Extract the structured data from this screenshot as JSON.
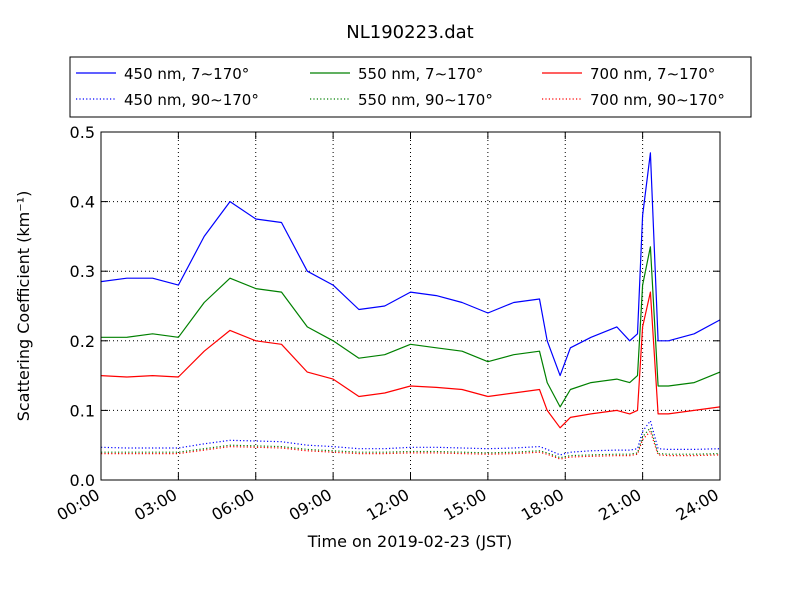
{
  "chart_data": {
    "type": "line",
    "title": "NL190223.dat",
    "xlabel": "Time on 2019-02-23 (JST)",
    "ylabel": "Scattering Coefficient (km⁻¹)",
    "xlim": [
      0,
      24
    ],
    "ylim": [
      0,
      0.5
    ],
    "xtick_values": [
      0,
      3,
      6,
      9,
      12,
      15,
      18,
      21,
      24
    ],
    "xtick_labels": [
      "00:00",
      "03:00",
      "06:00",
      "09:00",
      "12:00",
      "15:00",
      "18:00",
      "21:00",
      "24:00"
    ],
    "ytick_values": [
      0.0,
      0.1,
      0.2,
      0.3,
      0.4,
      0.5
    ],
    "ytick_labels": [
      "0.0",
      "0.1",
      "0.2",
      "0.3",
      "0.4",
      "0.5"
    ],
    "grid": true,
    "legend_position": "top, above plot",
    "x": [
      0,
      1,
      2,
      3,
      4,
      5,
      6,
      7,
      8,
      9,
      10,
      11,
      12,
      13,
      14,
      15,
      16,
      17,
      17.3,
      17.8,
      18.2,
      19,
      20,
      20.5,
      20.8,
      21.0,
      21.3,
      21.6,
      22,
      23,
      24
    ],
    "series": [
      {
        "name": "450 nm, 7∼170°",
        "style": "solid",
        "color": "#0000ff",
        "values": [
          0.285,
          0.29,
          0.29,
          0.28,
          0.35,
          0.4,
          0.375,
          0.37,
          0.3,
          0.28,
          0.245,
          0.25,
          0.27,
          0.265,
          0.255,
          0.24,
          0.255,
          0.26,
          0.2,
          0.15,
          0.19,
          0.205,
          0.22,
          0.2,
          0.21,
          0.38,
          0.47,
          0.2,
          0.2,
          0.21,
          0.23
        ]
      },
      {
        "name": "450 nm, 90∼170°",
        "style": "dotted",
        "color": "#0000ff",
        "values": [
          0.047,
          0.046,
          0.046,
          0.046,
          0.052,
          0.057,
          0.056,
          0.055,
          0.05,
          0.048,
          0.045,
          0.045,
          0.047,
          0.047,
          0.046,
          0.045,
          0.046,
          0.048,
          0.044,
          0.036,
          0.04,
          0.042,
          0.043,
          0.043,
          0.045,
          0.07,
          0.085,
          0.045,
          0.044,
          0.044,
          0.045
        ]
      },
      {
        "name": "550 nm, 7∼170°",
        "style": "solid",
        "color": "#008000",
        "values": [
          0.205,
          0.205,
          0.21,
          0.205,
          0.255,
          0.29,
          0.275,
          0.27,
          0.22,
          0.2,
          0.175,
          0.18,
          0.195,
          0.19,
          0.185,
          0.17,
          0.18,
          0.185,
          0.14,
          0.105,
          0.13,
          0.14,
          0.145,
          0.14,
          0.15,
          0.28,
          0.335,
          0.135,
          0.135,
          0.14,
          0.155
        ]
      },
      {
        "name": "550 nm, 90∼170°",
        "style": "dotted",
        "color": "#008000",
        "values": [
          0.04,
          0.04,
          0.04,
          0.04,
          0.045,
          0.05,
          0.049,
          0.048,
          0.044,
          0.042,
          0.04,
          0.04,
          0.041,
          0.041,
          0.04,
          0.039,
          0.04,
          0.042,
          0.039,
          0.032,
          0.035,
          0.036,
          0.037,
          0.037,
          0.039,
          0.062,
          0.075,
          0.038,
          0.037,
          0.037,
          0.038
        ]
      },
      {
        "name": "700 nm, 7∼170°",
        "style": "solid",
        "color": "#ff0000",
        "values": [
          0.15,
          0.148,
          0.15,
          0.148,
          0.185,
          0.215,
          0.2,
          0.195,
          0.155,
          0.145,
          0.12,
          0.125,
          0.135,
          0.133,
          0.13,
          0.12,
          0.125,
          0.13,
          0.1,
          0.075,
          0.09,
          0.095,
          0.1,
          0.095,
          0.1,
          0.22,
          0.27,
          0.095,
          0.095,
          0.1,
          0.105
        ]
      },
      {
        "name": "700 nm, 90∼170°",
        "style": "dotted",
        "color": "#ff0000",
        "values": [
          0.038,
          0.038,
          0.038,
          0.038,
          0.043,
          0.048,
          0.047,
          0.046,
          0.042,
          0.04,
          0.038,
          0.038,
          0.039,
          0.039,
          0.038,
          0.037,
          0.038,
          0.04,
          0.037,
          0.03,
          0.033,
          0.034,
          0.035,
          0.035,
          0.037,
          0.058,
          0.07,
          0.036,
          0.035,
          0.035,
          0.036
        ]
      }
    ]
  }
}
